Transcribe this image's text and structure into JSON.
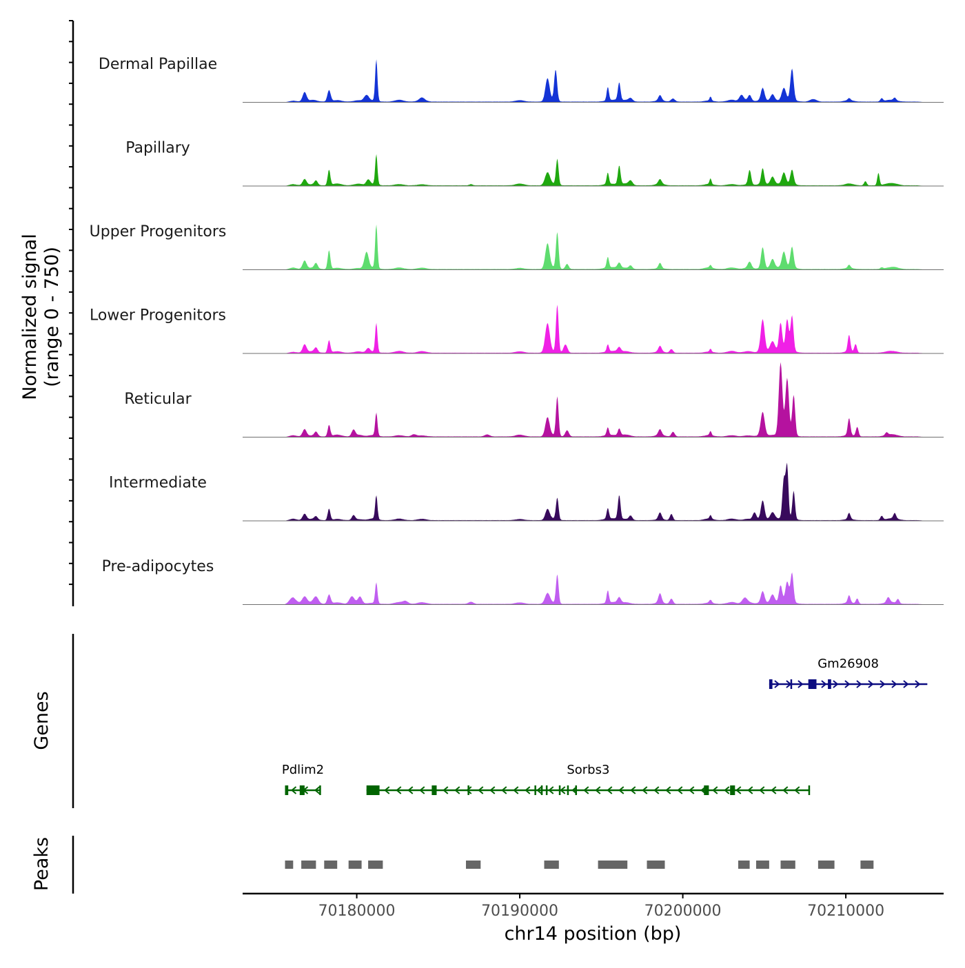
{
  "chart_data": {
    "type": "area",
    "chromosome": "chr14",
    "xlabel": "chr14 position (bp)",
    "ylabel_line1": "Normalized signal",
    "ylabel_line2": "(range 0 - 750)",
    "ylim": [
      0,
      750
    ],
    "xlim": [
      70173000,
      70216000
    ],
    "x_ticks": [
      70180000,
      70190000,
      70200000,
      70210000
    ],
    "x_tick_labels": [
      "70180000",
      "70190000",
      "70200000",
      "70210000"
    ],
    "signal_range": [
      70175500,
      70215000
    ],
    "panel_labels": {
      "genes": "Genes",
      "peaks": "Peaks"
    },
    "peak_centers": [
      70176000,
      70177300,
      70178800,
      70180100,
      70181000,
      70182600,
      70184000,
      70190000,
      70192000,
      70195400,
      70195900,
      70196500,
      70198600,
      70201600,
      70203000,
      70204000,
      70204900,
      70205600,
      70206200,
      70206700,
      70210200,
      70212600,
      70213000
    ],
    "series": [
      {
        "name": "Dermal Papillae",
        "color": "#1434d6",
        "peaks": [
          [
            70176800,
            90,
            120
          ],
          [
            70178300,
            110,
            100
          ],
          [
            70180600,
            60,
            150
          ],
          [
            70181200,
            400,
            70
          ],
          [
            70184000,
            25,
            150
          ],
          [
            70191700,
            220,
            130
          ],
          [
            70192200,
            300,
            90
          ],
          [
            70195400,
            130,
            70
          ],
          [
            70196100,
            170,
            80
          ],
          [
            70196800,
            30,
            120
          ],
          [
            70198600,
            50,
            100
          ],
          [
            70199400,
            30,
            120
          ],
          [
            70201700,
            40,
            60
          ],
          [
            70203600,
            60,
            130
          ],
          [
            70204100,
            50,
            100
          ],
          [
            70204900,
            120,
            110
          ],
          [
            70205500,
            60,
            120
          ],
          [
            70206200,
            120,
            130
          ],
          [
            70206700,
            300,
            100
          ],
          [
            70208000,
            25,
            200
          ],
          [
            70210200,
            20,
            80
          ],
          [
            70212200,
            30,
            80
          ],
          [
            70213000,
            25,
            80
          ]
        ]
      },
      {
        "name": "Papillary",
        "color": "#1fa80f",
        "peaks": [
          [
            70176800,
            60,
            120
          ],
          [
            70177500,
            40,
            100
          ],
          [
            70178300,
            150,
            80
          ],
          [
            70180700,
            50,
            120
          ],
          [
            70181200,
            290,
            70
          ],
          [
            70187000,
            12,
            100
          ],
          [
            70191700,
            120,
            150
          ],
          [
            70192300,
            250,
            80
          ],
          [
            70195400,
            110,
            70
          ],
          [
            70196100,
            180,
            80
          ],
          [
            70196800,
            40,
            120
          ],
          [
            70198600,
            45,
            100
          ],
          [
            70201700,
            55,
            60
          ],
          [
            70204100,
            140,
            90
          ],
          [
            70204900,
            150,
            90
          ],
          [
            70205500,
            70,
            120
          ],
          [
            70206200,
            110,
            120
          ],
          [
            70206700,
            140,
            100
          ],
          [
            70211200,
            40,
            80
          ],
          [
            70212000,
            120,
            70
          ]
        ]
      },
      {
        "name": "Upper Progenitors",
        "color": "#5edc6e",
        "peaks": [
          [
            70176800,
            80,
            120
          ],
          [
            70177500,
            50,
            100
          ],
          [
            70178300,
            180,
            80
          ],
          [
            70180600,
            160,
            130
          ],
          [
            70181200,
            420,
            70
          ],
          [
            70191700,
            240,
            130
          ],
          [
            70192300,
            350,
            80
          ],
          [
            70192900,
            50,
            100
          ],
          [
            70195400,
            100,
            70
          ],
          [
            70196100,
            50,
            100
          ],
          [
            70196800,
            30,
            100
          ],
          [
            70198600,
            50,
            90
          ],
          [
            70201700,
            25,
            60
          ],
          [
            70204100,
            60,
            110
          ],
          [
            70204900,
            200,
            100
          ],
          [
            70205500,
            80,
            120
          ],
          [
            70206200,
            150,
            120
          ],
          [
            70206700,
            200,
            100
          ],
          [
            70210200,
            30,
            80
          ],
          [
            70212200,
            15,
            80
          ]
        ]
      },
      {
        "name": "Lower Progenitors",
        "color": "#f020e6",
        "peaks": [
          [
            70176800,
            80,
            120
          ],
          [
            70177500,
            40,
            100
          ],
          [
            70178300,
            120,
            80
          ],
          [
            70180700,
            40,
            120
          ],
          [
            70181200,
            280,
            70
          ],
          [
            70191700,
            280,
            140
          ],
          [
            70192300,
            460,
            80
          ],
          [
            70192800,
            80,
            120
          ],
          [
            70195400,
            70,
            70
          ],
          [
            70196100,
            40,
            100
          ],
          [
            70198600,
            55,
            100
          ],
          [
            70199300,
            35,
            100
          ],
          [
            70201700,
            30,
            60
          ],
          [
            70204900,
            310,
            120
          ],
          [
            70205500,
            100,
            150
          ],
          [
            70206000,
            280,
            100
          ],
          [
            70206400,
            310,
            100
          ],
          [
            70206700,
            340,
            90
          ],
          [
            70210200,
            160,
            80
          ],
          [
            70210600,
            80,
            80
          ]
        ]
      },
      {
        "name": "Reticular",
        "color": "#b5129f",
        "peaks": [
          [
            70176800,
            70,
            120
          ],
          [
            70177500,
            40,
            100
          ],
          [
            70178300,
            110,
            80
          ],
          [
            70179800,
            60,
            110
          ],
          [
            70181200,
            220,
            70
          ],
          [
            70183500,
            20,
            150
          ],
          [
            70188000,
            20,
            150
          ],
          [
            70191700,
            180,
            130
          ],
          [
            70192300,
            380,
            80
          ],
          [
            70192900,
            60,
            110
          ],
          [
            70195400,
            75,
            70
          ],
          [
            70196100,
            65,
            80
          ],
          [
            70198600,
            55,
            100
          ],
          [
            70199400,
            45,
            100
          ],
          [
            70201700,
            40,
            60
          ],
          [
            70204900,
            220,
            120
          ],
          [
            70206000,
            700,
            110
          ],
          [
            70206400,
            550,
            110
          ],
          [
            70206800,
            390,
            90
          ],
          [
            70210200,
            160,
            80
          ],
          [
            70210700,
            90,
            80
          ],
          [
            70212500,
            25,
            80
          ]
        ]
      },
      {
        "name": "Intermediate",
        "color": "#380a5c",
        "peaks": [
          [
            70176800,
            60,
            120
          ],
          [
            70177500,
            30,
            100
          ],
          [
            70178300,
            110,
            80
          ],
          [
            70179800,
            45,
            100
          ],
          [
            70181200,
            230,
            70
          ],
          [
            70191700,
            100,
            130
          ],
          [
            70192300,
            210,
            80
          ],
          [
            70195400,
            100,
            70
          ],
          [
            70196100,
            230,
            80
          ],
          [
            70196800,
            40,
            100
          ],
          [
            70198600,
            65,
            100
          ],
          [
            70199300,
            60,
            90
          ],
          [
            70201700,
            35,
            60
          ],
          [
            70204400,
            70,
            110
          ],
          [
            70204900,
            180,
            110
          ],
          [
            70205500,
            60,
            130
          ],
          [
            70206200,
            380,
            90
          ],
          [
            70206400,
            500,
            80
          ],
          [
            70206800,
            270,
            80
          ],
          [
            70210200,
            60,
            80
          ],
          [
            70212200,
            40,
            80
          ],
          [
            70213000,
            50,
            80
          ]
        ]
      },
      {
        "name": "Pre-adipocytes",
        "color": "#c05ef0",
        "peaks": [
          [
            70176000,
            60,
            250
          ],
          [
            70176800,
            70,
            150
          ],
          [
            70177500,
            60,
            150
          ],
          [
            70178300,
            90,
            100
          ],
          [
            70179700,
            70,
            150
          ],
          [
            70180200,
            60,
            120
          ],
          [
            70181200,
            200,
            70
          ],
          [
            70183000,
            25,
            150
          ],
          [
            70187000,
            20,
            150
          ],
          [
            70191700,
            100,
            150
          ],
          [
            70192300,
            280,
            80
          ],
          [
            70195400,
            120,
            70
          ],
          [
            70196100,
            50,
            100
          ],
          [
            70198600,
            90,
            100
          ],
          [
            70199300,
            50,
            100
          ],
          [
            70201700,
            30,
            80
          ],
          [
            70203800,
            50,
            150
          ],
          [
            70204900,
            110,
            110
          ],
          [
            70205500,
            80,
            130
          ],
          [
            70206000,
            170,
            100
          ],
          [
            70206400,
            200,
            110
          ],
          [
            70206700,
            280,
            90
          ],
          [
            70210200,
            70,
            80
          ],
          [
            70210700,
            50,
            80
          ],
          [
            70212600,
            50,
            100
          ],
          [
            70213200,
            40,
            80
          ]
        ]
      }
    ],
    "genes": [
      {
        "name": "Gm26908",
        "strand": "+",
        "color": "#0c0c80",
        "row": 0,
        "start": 70205300,
        "end": 70215000,
        "exons": [
          [
            70205300,
            70205500
          ],
          [
            70206600,
            70206700
          ],
          [
            70207700,
            70208200
          ],
          [
            70208900,
            70209100
          ]
        ]
      },
      {
        "name": "Pdlim2",
        "strand": "-",
        "color": "#006400",
        "row": 1,
        "start": 70175600,
        "end": 70177800,
        "exons": [
          [
            70175600,
            70175800
          ],
          [
            70176500,
            70176800
          ],
          [
            70177700,
            70177800
          ]
        ]
      },
      {
        "name": "Sorbs3",
        "strand": "-",
        "color": "#006400",
        "row": 1,
        "start": 70180600,
        "end": 70207800,
        "exons": [
          [
            70180600,
            70181400
          ],
          [
            70184600,
            70184900
          ],
          [
            70186800,
            70186900
          ],
          [
            70190900,
            70191000
          ],
          [
            70191300,
            70191400
          ],
          [
            70191600,
            70191700
          ],
          [
            70192400,
            70192500
          ],
          [
            70192900,
            70193000
          ],
          [
            70193400,
            70193500
          ],
          [
            70201300,
            70201600
          ],
          [
            70202900,
            70203200
          ],
          [
            70207700,
            70207800
          ]
        ]
      }
    ],
    "peaks": [
      {
        "start": 70175600,
        "end": 70176100
      },
      {
        "start": 70176600,
        "end": 70177500
      },
      {
        "start": 70178000,
        "end": 70178800
      },
      {
        "start": 70179500,
        "end": 70180300
      },
      {
        "start": 70180700,
        "end": 70181600
      },
      {
        "start": 70186700,
        "end": 70187600
      },
      {
        "start": 70191500,
        "end": 70192400
      },
      {
        "start": 70194800,
        "end": 70196600
      },
      {
        "start": 70197800,
        "end": 70198900
      },
      {
        "start": 70203400,
        "end": 70204100
      },
      {
        "start": 70204500,
        "end": 70205300
      },
      {
        "start": 70206000,
        "end": 70206900
      },
      {
        "start": 70208300,
        "end": 70209300
      },
      {
        "start": 70210900,
        "end": 70211700
      }
    ]
  }
}
